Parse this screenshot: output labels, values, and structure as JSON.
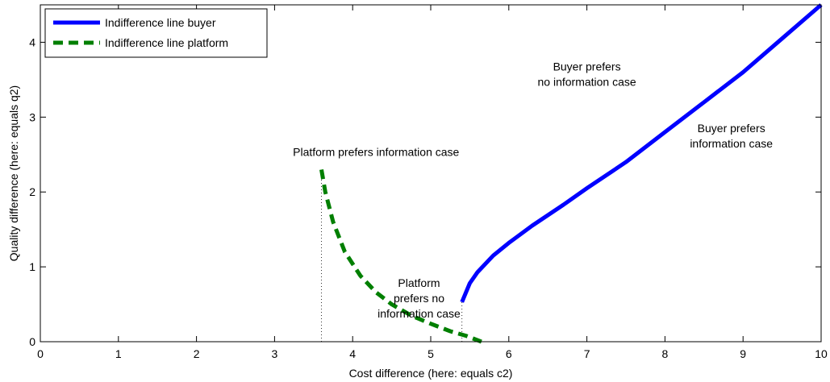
{
  "chart_data": {
    "type": "line",
    "xlabel": "Cost difference (here: equals c2)",
    "ylabel": "Quality difference (here: equals q2)",
    "xlim": [
      0,
      10
    ],
    "ylim": [
      0,
      4.5
    ],
    "xticks": [
      "0",
      "1",
      "2",
      "3",
      "4",
      "5",
      "6",
      "7",
      "8",
      "9",
      "10"
    ],
    "yticks": [
      "0",
      "1",
      "2",
      "3",
      "4"
    ],
    "grid": false,
    "legend_position": "top-left",
    "series": [
      {
        "name": "Indifference line buyer",
        "color": "#0000ff",
        "style": "solid",
        "x": [
          5.4,
          5.5,
          5.6,
          5.8,
          6.0,
          6.3,
          6.7,
          7.0,
          7.5,
          8.0,
          8.5,
          9.0,
          9.5,
          10.0
        ],
        "y": [
          0.53,
          0.78,
          0.93,
          1.15,
          1.32,
          1.55,
          1.83,
          2.05,
          2.4,
          2.8,
          3.2,
          3.6,
          4.05,
          4.5
        ]
      },
      {
        "name": "Indifference line platform",
        "color": "#007f00",
        "style": "dashed",
        "x": [
          3.6,
          3.65,
          3.75,
          3.9,
          4.1,
          4.3,
          4.5,
          4.75,
          5.0,
          5.25,
          5.45,
          5.65
        ],
        "y": [
          2.3,
          2.0,
          1.6,
          1.2,
          0.88,
          0.66,
          0.5,
          0.35,
          0.24,
          0.14,
          0.08,
          0.0
        ]
      }
    ],
    "vertical_markers": [
      {
        "x": 3.6,
        "y_top": 2.3
      },
      {
        "x": 5.4,
        "y_top": 0.53
      }
    ],
    "annotations": [
      {
        "lines": [
          "Platform prefers information case"
        ],
        "x": 4.3,
        "y": 2.48
      },
      {
        "lines": [
          "Platform",
          "prefers no",
          "information case"
        ],
        "x": 4.85,
        "y": 0.73
      },
      {
        "lines": [
          "Buyer prefers",
          "no information case"
        ],
        "x": 7.0,
        "y": 3.62
      },
      {
        "lines": [
          "Buyer prefers",
          "information case"
        ],
        "x": 8.85,
        "y": 2.8
      }
    ]
  }
}
